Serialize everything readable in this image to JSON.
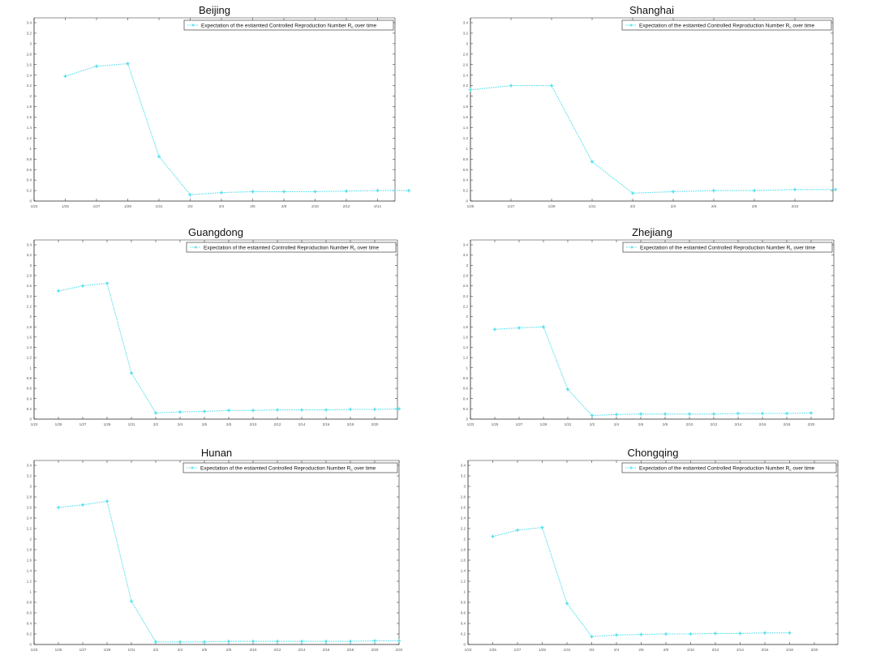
{
  "colors": {
    "series": "#55e0ee",
    "axis": "#222222",
    "tick_text": "#555555",
    "background": "#ffffff"
  },
  "legend": {
    "text": "Expectation of the estiamted Controlled Reproduction Number R",
    "subscript": "c",
    "suffix": " over time",
    "marker_icon": "star-marker-icon"
  },
  "chart_data": [
    {
      "type": "line",
      "title": "Beijing",
      "y_ticks": [
        "0",
        "0.2",
        "0.4",
        "0.6",
        "0.8",
        "1",
        "1.2",
        "1.4",
        "1.6",
        "1.8",
        "2",
        "2.2",
        "2.4",
        "2.6",
        "2.8",
        "3",
        "3.2",
        "3.4"
      ],
      "ylim": [
        0,
        3.4
      ],
      "x_ticks": [
        "1/23",
        "1/25",
        "1/27",
        "1/29",
        "1/31",
        "2/2",
        "2/4",
        "2/6",
        "2/8",
        "2/10",
        "2/12",
        "2/14",
        "2/16"
      ],
      "series": [
        {
          "x": [
            "1/25",
            "1/27",
            "1/29",
            "1/31",
            "2/2",
            "2/4",
            "2/6",
            "2/8",
            "2/10",
            "2/12",
            "2/14",
            "2/16"
          ],
          "values": [
            2.38,
            2.57,
            2.62,
            0.85,
            0.12,
            0.16,
            0.18,
            0.18,
            0.18,
            0.19,
            0.2,
            0.2
          ]
        }
      ]
    },
    {
      "type": "line",
      "title": "Shanghai",
      "y_ticks": [
        "0",
        "0.2",
        "0.4",
        "0.6",
        "0.8",
        "1",
        "1.2",
        "1.4",
        "1.6",
        "1.8",
        "2",
        "2.2",
        "2.4",
        "2.6",
        "2.8",
        "3",
        "3.2",
        "3.4"
      ],
      "ylim": [
        0,
        3.4
      ],
      "x_ticks": [
        "1/25",
        "1/27",
        "1/29",
        "1/31",
        "2/2",
        "2/4",
        "2/6",
        "2/8",
        "2/10",
        "2/12"
      ],
      "series": [
        {
          "x": [
            "1/25",
            "1/27",
            "1/29",
            "1/31",
            "2/2",
            "2/4",
            "2/6",
            "2/8",
            "2/10",
            "2/12"
          ],
          "values": [
            2.12,
            2.2,
            2.2,
            0.75,
            0.15,
            0.18,
            0.2,
            0.2,
            0.22,
            0.22
          ]
        }
      ]
    },
    {
      "type": "line",
      "title": "Guangdong",
      "y_ticks": [
        "0",
        "0.2",
        "0.4",
        "0.6",
        "0.8",
        "1",
        "1.2",
        "1.4",
        "1.6",
        "1.8",
        "2",
        "2.2",
        "2.4",
        "2.6",
        "2.8",
        "3",
        "3.2",
        "3.4"
      ],
      "ylim": [
        0,
        3.4
      ],
      "x_ticks": [
        "1/23",
        "1/25",
        "1/27",
        "1/29",
        "1/31",
        "2/2",
        "2/4",
        "2/6",
        "2/8",
        "2/10",
        "2/12",
        "2/14",
        "2/16",
        "2/18",
        "2/20",
        "2/22"
      ],
      "series": [
        {
          "x": [
            "1/25",
            "1/27",
            "1/29",
            "1/31",
            "2/2",
            "2/4",
            "2/6",
            "2/8",
            "2/10",
            "2/12",
            "2/14",
            "2/16",
            "2/18",
            "2/20",
            "2/22"
          ],
          "values": [
            2.5,
            2.6,
            2.65,
            0.9,
            0.12,
            0.14,
            0.15,
            0.17,
            0.17,
            0.18,
            0.18,
            0.18,
            0.19,
            0.19,
            0.2
          ]
        }
      ]
    },
    {
      "type": "line",
      "title": "Zhejiang",
      "y_ticks": [
        "0",
        "0.2",
        "0.4",
        "0.6",
        "0.8",
        "1",
        "1.2",
        "1.4",
        "1.6",
        "1.8",
        "2",
        "2.2",
        "2.4",
        "2.6",
        "2.8",
        "3",
        "3.2",
        "3.4"
      ],
      "ylim": [
        0,
        3.4
      ],
      "x_ticks": [
        "1/23",
        "1/25",
        "1/27",
        "1/29",
        "1/31",
        "2/2",
        "2/4",
        "2/6",
        "2/8",
        "2/10",
        "2/12",
        "2/14",
        "2/16",
        "2/18",
        "2/20",
        "2/22"
      ],
      "series": [
        {
          "x": [
            "1/25",
            "1/27",
            "1/29",
            "1/31",
            "2/2",
            "2/4",
            "2/6",
            "2/8",
            "2/10",
            "2/12",
            "2/14",
            "2/16",
            "2/18",
            "2/20"
          ],
          "values": [
            1.75,
            1.78,
            1.8,
            0.58,
            0.07,
            0.09,
            0.1,
            0.1,
            0.1,
            0.1,
            0.11,
            0.11,
            0.11,
            0.12
          ]
        }
      ]
    },
    {
      "type": "line",
      "title": "Hunan",
      "y_ticks": [
        "0",
        "0.2",
        "0.4",
        "0.6",
        "0.8",
        "1",
        "1.2",
        "1.4",
        "1.6",
        "1.8",
        "2",
        "2.2",
        "2.4",
        "2.6",
        "2.8",
        "3",
        "3.2",
        "3.4"
      ],
      "ylim": [
        0,
        3.4
      ],
      "x_ticks": [
        "1/23",
        "1/25",
        "1/27",
        "1/29",
        "1/31",
        "2/2",
        "2/4",
        "2/6",
        "2/8",
        "2/10",
        "2/12",
        "2/14",
        "2/16",
        "2/18",
        "2/20",
        "2/22"
      ],
      "series": [
        {
          "x": [
            "1/25",
            "1/27",
            "1/29",
            "1/31",
            "2/2",
            "2/4",
            "2/6",
            "2/8",
            "2/10",
            "2/12",
            "2/14",
            "2/16",
            "2/18",
            "2/20",
            "2/22"
          ],
          "values": [
            2.6,
            2.65,
            2.72,
            0.82,
            0.05,
            0.05,
            0.05,
            0.06,
            0.06,
            0.06,
            0.06,
            0.06,
            0.06,
            0.07,
            0.07
          ]
        }
      ]
    },
    {
      "type": "line",
      "title": "Chongqing",
      "y_ticks": [
        "0",
        "0.2",
        "0.4",
        "0.6",
        "0.8",
        "1",
        "1.2",
        "1.4",
        "1.6",
        "1.8",
        "2",
        "2.2",
        "2.4",
        "2.6",
        "2.8",
        "3",
        "3.2",
        "3.4"
      ],
      "ylim": [
        0,
        3.4
      ],
      "x_ticks": [
        "1/23",
        "1/25",
        "1/27",
        "1/29",
        "1/31",
        "2/2",
        "2/4",
        "2/6",
        "2/8",
        "2/10",
        "2/12",
        "2/14",
        "2/16",
        "2/18",
        "2/20",
        "2/22"
      ],
      "series": [
        {
          "x": [
            "1/25",
            "1/27",
            "1/29",
            "1/31",
            "2/2",
            "2/4",
            "2/6",
            "2/8",
            "2/10",
            "2/12",
            "2/14",
            "2/16",
            "2/18"
          ],
          "values": [
            2.05,
            2.17,
            2.22,
            0.78,
            0.15,
            0.18,
            0.19,
            0.2,
            0.2,
            0.21,
            0.21,
            0.22,
            0.22
          ]
        }
      ]
    }
  ]
}
